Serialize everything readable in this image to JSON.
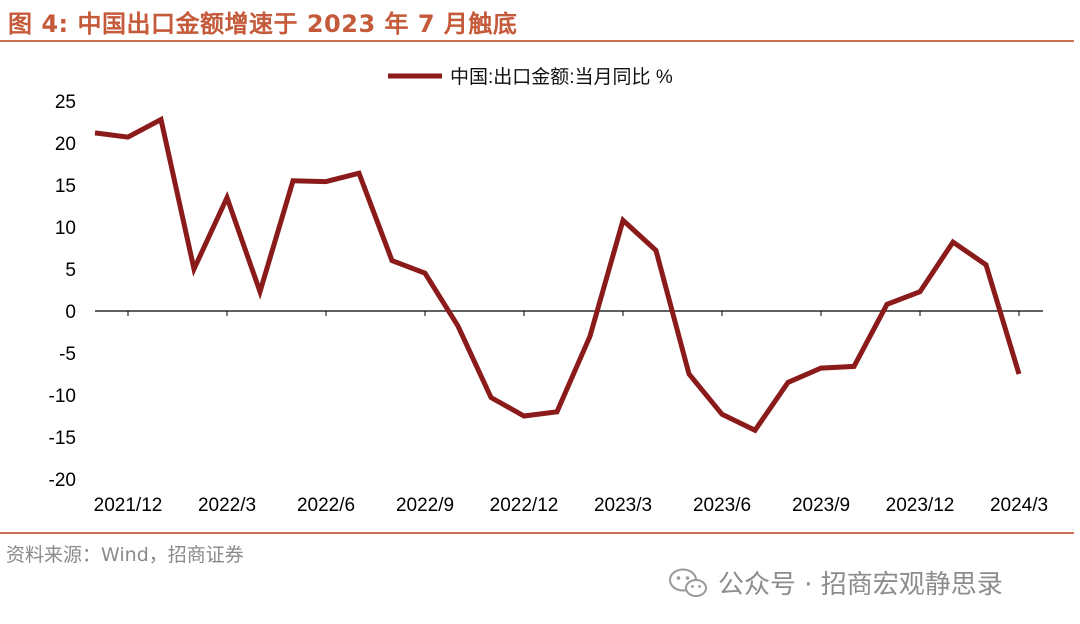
{
  "header": {
    "title": "图 4:  中国出口金额增速于 2023 年 7 月触底"
  },
  "footer": {
    "source": "资料来源：Wind，招商证券",
    "watermark": "公众号 · 招商宏观静思录"
  },
  "colors": {
    "series_line": "#8b1a1a",
    "rule": "#c87050",
    "title": "#c55a3a"
  },
  "chart_data": {
    "type": "line",
    "title": "",
    "xlabel": "",
    "ylabel": "",
    "ylim": [
      -20,
      25
    ],
    "yticks": [
      25,
      20,
      15,
      10,
      5,
      0,
      -5,
      -10,
      -15,
      -20
    ],
    "xtick_labels": [
      "2021/12",
      "2022/3",
      "2022/6",
      "2022/9",
      "2022/12",
      "2023/3",
      "2023/6",
      "2023/9",
      "2023/12",
      "2024/3"
    ],
    "x": [
      "2021/11",
      "2021/12",
      "2022/1",
      "2022/2",
      "2022/3",
      "2022/4",
      "2022/5",
      "2022/6",
      "2022/7",
      "2022/8",
      "2022/9",
      "2022/10",
      "2022/11",
      "2022/12",
      "2023/1",
      "2023/2",
      "2023/3",
      "2023/4",
      "2023/5",
      "2023/6",
      "2023/7",
      "2023/8",
      "2023/9",
      "2023/10",
      "2023/11",
      "2023/12",
      "2024/1",
      "2024/2",
      "2024/3"
    ],
    "grid": false,
    "legend_position": "top-center",
    "series": [
      {
        "name": "中国:出口金额:当月同比 %",
        "values": [
          21.2,
          20.7,
          22.8,
          5.0,
          13.5,
          2.3,
          15.5,
          15.4,
          16.4,
          6.0,
          4.5,
          -1.8,
          -10.3,
          -12.5,
          -12.0,
          -3.0,
          10.8,
          7.2,
          -7.5,
          -12.3,
          -14.2,
          -8.5,
          -6.8,
          -6.6,
          0.8,
          2.3,
          8.2,
          5.5,
          -7.5
        ]
      }
    ]
  }
}
